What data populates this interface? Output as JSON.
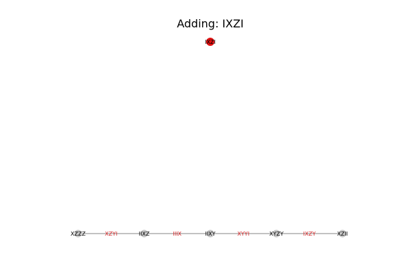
{
  "title": "Adding: IXZI",
  "colors": {
    "background": "#ffffff",
    "edge": "#9e9e9e",
    "node_gray": "#c8c8c8",
    "node_red": "#e01010",
    "label_black": "#000000",
    "label_red": "#d62728"
  },
  "new_node": {
    "label": "IXZI",
    "color": "red"
  },
  "chain": {
    "nodes": [
      {
        "label": "XZZZ",
        "style": "node"
      },
      {
        "label": "XZYI",
        "style": "edge-label"
      },
      {
        "label": "IIXZ",
        "style": "node"
      },
      {
        "label": "IIIX",
        "style": "edge-label"
      },
      {
        "label": "IIXY",
        "style": "node"
      },
      {
        "label": "XYYI",
        "style": "edge-label"
      },
      {
        "label": "XYZY",
        "style": "node"
      },
      {
        "label": "IXZY",
        "style": "edge-label"
      },
      {
        "label": "XZII",
        "style": "node"
      }
    ]
  }
}
